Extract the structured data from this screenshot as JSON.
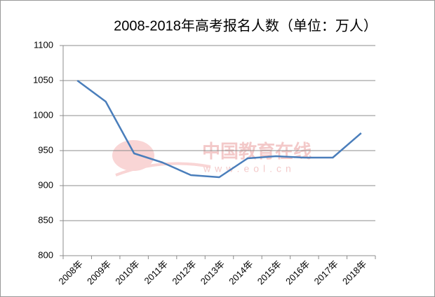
{
  "chart_data": {
    "type": "line",
    "title": "2008-2018年高考报名人数（单位：万人）",
    "categories": [
      "2008年",
      "2009年",
      "2010年",
      "2011年",
      "2012年",
      "2013年",
      "2014年",
      "2015年",
      "2016年",
      "2017年",
      "2018年"
    ],
    "series": [
      {
        "name": "高考报名人数",
        "color": "#4a7ebb",
        "values": [
          1050,
          1020,
          946,
          933,
          915,
          912,
          939,
          942,
          940,
          940,
          975
        ]
      }
    ],
    "ylim": [
      800,
      1100
    ],
    "yticks": [
      800,
      850,
      900,
      950,
      1000,
      1050,
      1100
    ],
    "grid": true,
    "watermark": {
      "text": "中国教育在线",
      "url": "www.eol.cn"
    }
  }
}
